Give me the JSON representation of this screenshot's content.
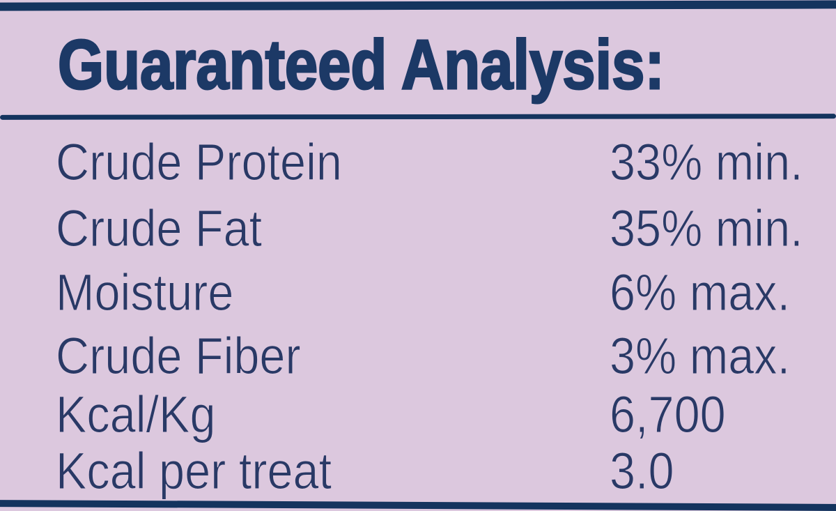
{
  "label": {
    "title": "Guaranteed Analysis:",
    "rows": [
      {
        "name": "Crude Protein",
        "value": "33% min."
      },
      {
        "name": "Crude Fat",
        "value": "35% min."
      },
      {
        "name": "Moisture",
        "value": "6% max."
      },
      {
        "name": "Crude Fiber",
        "value": "3% max."
      },
      {
        "name": "Kcal/Kg",
        "value": "6,700"
      },
      {
        "name": "Kcal per treat",
        "value": "3.0"
      }
    ],
    "colors": {
      "background": "#dcc8de",
      "bar": "#14345e",
      "title_text": "#1c3966",
      "row_text": "#293966"
    }
  }
}
